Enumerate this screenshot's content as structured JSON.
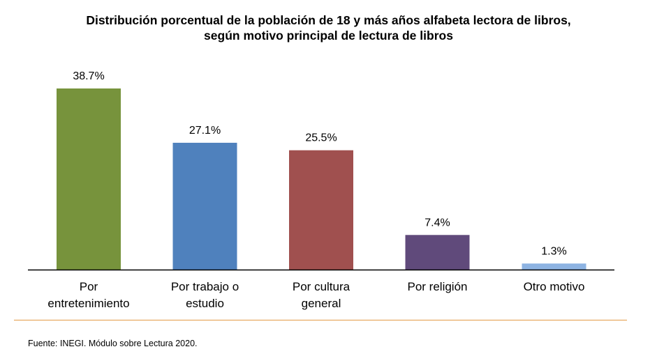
{
  "chart_data": {
    "type": "bar",
    "title_lines": [
      "Distribución porcentual de la población de 18 y más años alfabeta lectora de libros,",
      "según motivo principal de lectura de libros"
    ],
    "categories": [
      [
        "Por",
        "entretenimiento"
      ],
      [
        "Por trabajo o",
        "estudio"
      ],
      [
        "Por cultura",
        "general"
      ],
      [
        "Por religión"
      ],
      [
        "Otro motivo"
      ]
    ],
    "values": [
      38.7,
      27.1,
      25.5,
      7.4,
      1.3
    ],
    "data_labels": [
      "38.7%",
      "27.1%",
      "25.5%",
      "7.4%",
      "1.3%"
    ],
    "colors": [
      "#77933C",
      "#4F81BD",
      "#A0504F",
      "#604A7B",
      "#8DB3E2"
    ],
    "ylim": [
      0,
      38.7
    ],
    "grid": false,
    "legend": "none"
  },
  "source": "Fuente: INEGI. Módulo sobre Lectura 2020.",
  "separator_color": "#E39A45"
}
